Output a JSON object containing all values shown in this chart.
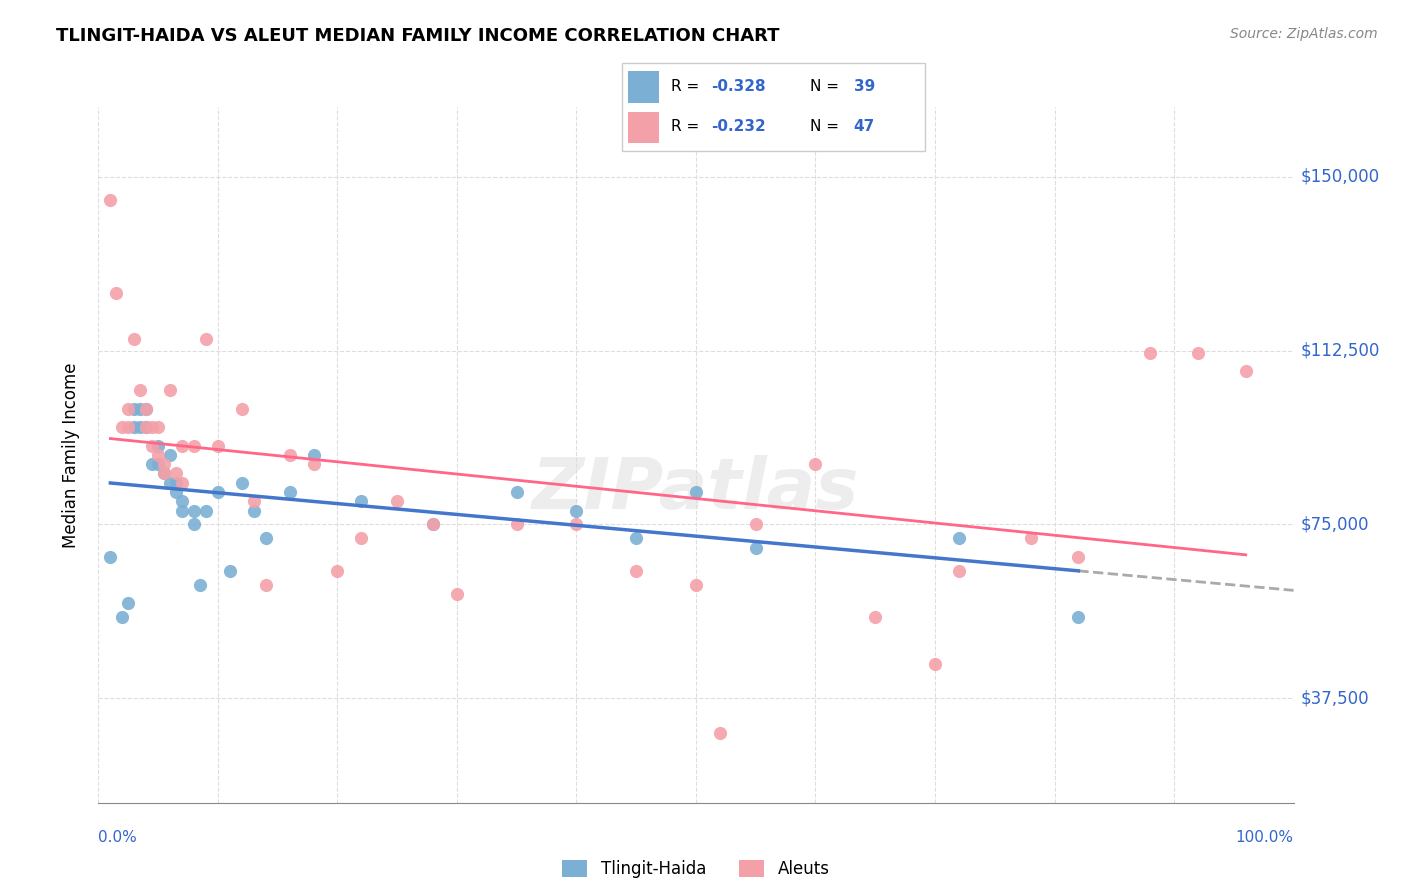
{
  "title": "TLINGIT-HAIDA VS ALEUT MEDIAN FAMILY INCOME CORRELATION CHART",
  "source": "Source: ZipAtlas.com",
  "ylabel": "Median Family Income",
  "xlim": [
    0.0,
    1.0
  ],
  "ylim": [
    15000,
    165000
  ],
  "legend_r1": "-0.328",
  "legend_n1": "39",
  "legend_r2": "-0.232",
  "legend_n2": "47",
  "legend_label1": "Tlingit-Haida",
  "legend_label2": "Aleuts",
  "color_blue": "#7BAFD4",
  "color_pink": "#F4A0A8",
  "color_blue_text": "#3366CC",
  "ytick_vals": [
    37500,
    75000,
    112500,
    150000
  ],
  "ytick_labels": [
    "$37,500",
    "$75,000",
    "$112,500",
    "$150,000"
  ],
  "tlingit_x": [
    0.01,
    0.02,
    0.025,
    0.03,
    0.03,
    0.035,
    0.035,
    0.04,
    0.04,
    0.045,
    0.05,
    0.05,
    0.055,
    0.06,
    0.06,
    0.065,
    0.065,
    0.07,
    0.07,
    0.08,
    0.08,
    0.085,
    0.09,
    0.1,
    0.11,
    0.12,
    0.13,
    0.14,
    0.16,
    0.18,
    0.22,
    0.28,
    0.35,
    0.4,
    0.45,
    0.5,
    0.55,
    0.72,
    0.82
  ],
  "tlingit_y": [
    68000,
    55000,
    58000,
    96000,
    100000,
    96000,
    100000,
    96000,
    100000,
    88000,
    88000,
    92000,
    86000,
    90000,
    84000,
    84000,
    82000,
    80000,
    78000,
    78000,
    75000,
    62000,
    78000,
    82000,
    65000,
    84000,
    78000,
    72000,
    82000,
    90000,
    80000,
    75000,
    82000,
    78000,
    72000,
    82000,
    70000,
    72000,
    55000
  ],
  "aleut_x": [
    0.01,
    0.015,
    0.02,
    0.025,
    0.025,
    0.03,
    0.035,
    0.04,
    0.04,
    0.045,
    0.045,
    0.05,
    0.05,
    0.055,
    0.055,
    0.06,
    0.065,
    0.07,
    0.07,
    0.08,
    0.09,
    0.1,
    0.12,
    0.13,
    0.14,
    0.16,
    0.18,
    0.2,
    0.22,
    0.25,
    0.28,
    0.3,
    0.35,
    0.4,
    0.45,
    0.5,
    0.52,
    0.55,
    0.6,
    0.65,
    0.7,
    0.72,
    0.78,
    0.82,
    0.88,
    0.92,
    0.96
  ],
  "aleut_y": [
    145000,
    125000,
    96000,
    96000,
    100000,
    115000,
    104000,
    100000,
    96000,
    96000,
    92000,
    90000,
    96000,
    88000,
    86000,
    104000,
    86000,
    84000,
    92000,
    92000,
    115000,
    92000,
    100000,
    80000,
    62000,
    90000,
    88000,
    65000,
    72000,
    80000,
    75000,
    60000,
    75000,
    75000,
    65000,
    62000,
    30000,
    75000,
    88000,
    55000,
    45000,
    65000,
    72000,
    68000,
    112000,
    112000,
    108000
  ]
}
